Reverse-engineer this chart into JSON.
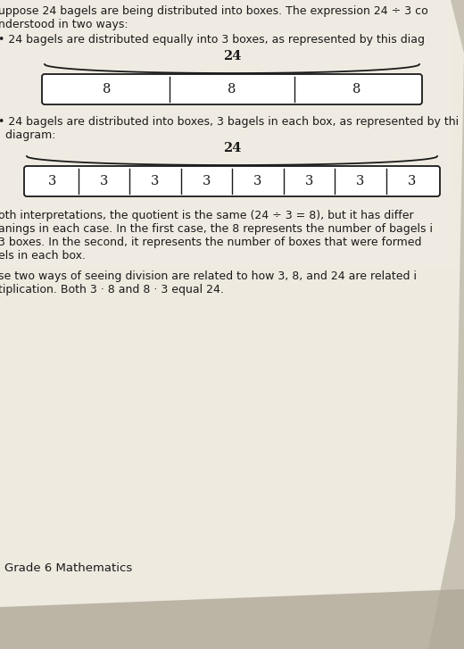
{
  "bg_color_top": "#c8c2b4",
  "bg_color_page": "#e8e4dc",
  "text_color": "#1a1a1a",
  "line0": "uppose 24 bagels are being distributed into boxes. The expression 24 ÷ 3 co",
  "line1": "nderstood in two ways:",
  "bullet1_line1": "• 24 bagels are distributed equally into 3 boxes, as represented by this diag",
  "diagram1_label": "24",
  "diagram1_cells": [
    "8",
    "8",
    "8"
  ],
  "bullet2_line1": "• 24 bagels are distributed into boxes, 3 bagels in each box, as represented by thi",
  "bullet2_line2": "  diagram:",
  "diagram2_label": "24",
  "diagram2_cells": [
    "3",
    "3",
    "3",
    "3",
    "3",
    "3",
    "3",
    "3"
  ],
  "para_lines": [
    "oth interpretations, the quotient is the same (24 ÷ 3 = 8), but it has differ",
    "anings in each case. In the first case, the 8 represents the number of bagels i",
    "3 boxes. In the second, it represents the number of boxes that were formed",
    "els in each box."
  ],
  "para2_lines": [
    "se two ways of seeing division are related to how 3, 8, and 24 are related i",
    "tiplication. Both 3 · 8 and 8 · 3 equal 24."
  ],
  "footer": "Grade 6 Mathematics",
  "font_size_body": 8.5,
  "font_size_label": 10.5,
  "font_size_cell": 10.5,
  "font_size_footer": 9.5
}
